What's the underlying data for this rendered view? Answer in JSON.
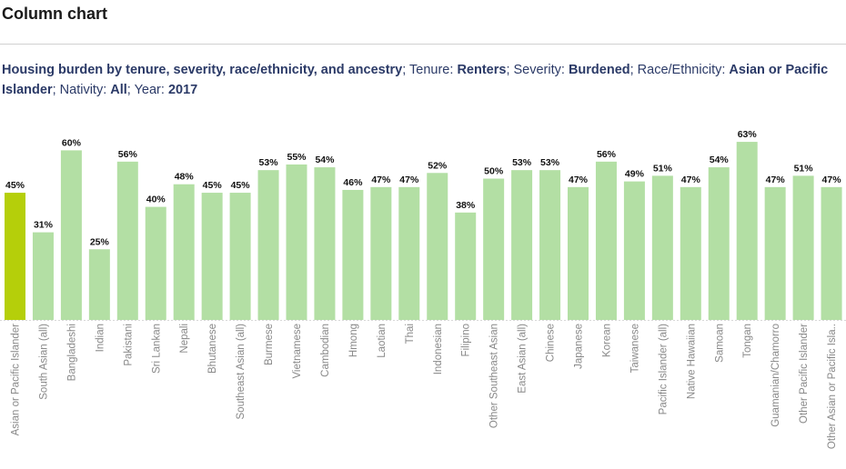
{
  "header": {
    "title": "Column chart"
  },
  "subtitle": [
    {
      "text": "Housing burden by tenure, severity, race/ethnicity, and ancestry",
      "bold": true
    },
    {
      "text": "; Tenure: ",
      "bold": false
    },
    {
      "text": "Renters",
      "bold": true
    },
    {
      "text": "; Severity: ",
      "bold": false
    },
    {
      "text": "Burdened",
      "bold": true
    },
    {
      "text": "; Race/Ethnicity: ",
      "bold": false
    },
    {
      "text": "Asian or Pacific Islander",
      "bold": true
    },
    {
      "text": "; Nativity: ",
      "bold": false
    },
    {
      "text": "All",
      "bold": true
    },
    {
      "text": "; Year: ",
      "bold": false
    },
    {
      "text": "2017",
      "bold": true
    }
  ],
  "chart_data": {
    "type": "bar",
    "title": "",
    "xlabel": "",
    "ylabel": "",
    "ylim": [
      0,
      63
    ],
    "grid": false,
    "colors": {
      "highlight": "#b5cf0a",
      "default": "#b3dfa4",
      "label": "#111111",
      "tick": "#888888"
    },
    "categories": [
      "Asian or Pacific Islander",
      "South Asian (all)",
      "Bangladeshi",
      "Indian",
      "Pakistani",
      "Sri Lankan",
      "Nepali",
      "Bhutanese",
      "Southeast Asian (all)",
      "Burmese",
      "Vietnamese",
      "Cambodian",
      "Hmong",
      "Laotian",
      "Thai",
      "Indonesian",
      "Filipino",
      "Other Southeast Asian",
      "East Asian (all)",
      "Chinese",
      "Japanese",
      "Korean",
      "Taiwanese",
      "Pacific Islander (all)",
      "Native Hawaiian",
      "Samoan",
      "Tongan",
      "Guamanian/Chamorro",
      "Other Pacific Islander",
      "Other Asian or Pacific Isla.."
    ],
    "values": [
      45,
      31,
      60,
      25,
      56,
      40,
      48,
      45,
      45,
      53,
      55,
      54,
      46,
      47,
      47,
      52,
      38,
      50,
      53,
      53,
      47,
      56,
      49,
      51,
      47,
      54,
      63,
      47,
      51,
      47
    ],
    "data_labels": [
      "45%",
      "31%",
      "60%",
      "25%",
      "56%",
      "40%",
      "48%",
      "45%",
      "45%",
      "53%",
      "55%",
      "54%",
      "46%",
      "47%",
      "47%",
      "52%",
      "38%",
      "50%",
      "53%",
      "53%",
      "47%",
      "56%",
      "49%",
      "51%",
      "47%",
      "54%",
      "63%",
      "47%",
      "51%",
      "47%"
    ],
    "highlighted_index": 0
  }
}
